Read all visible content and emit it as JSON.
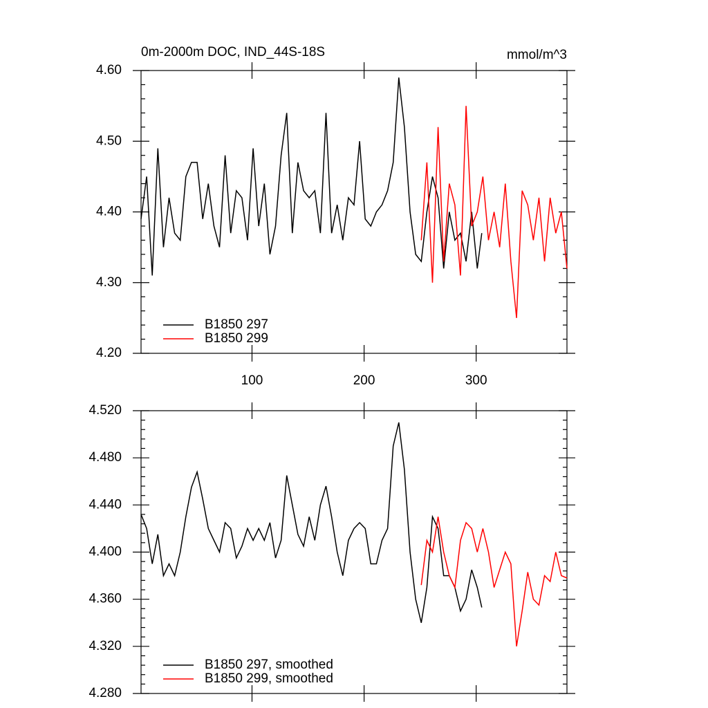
{
  "chart_data": [
    {
      "type": "line",
      "title": "0m-2000m DOC, IND_44S-18S",
      "units": "mmol/m^3",
      "xlim": [
        1,
        381
      ],
      "xticks": [
        100,
        200,
        300
      ],
      "xtick_labels": true,
      "ylim": [
        4.2,
        4.6
      ],
      "yticks": [
        {
          "value": 4.2,
          "label": "4.20"
        },
        {
          "value": 4.3,
          "label": "4.30"
        },
        {
          "value": 4.4,
          "label": "4.40"
        },
        {
          "value": 4.5,
          "label": "4.50"
        },
        {
          "value": 4.6,
          "label": "4.60"
        }
      ],
      "legend": "lower left",
      "series": [
        {
          "name": "B1850 297",
          "color": "#000000",
          "x": [
            1,
            6,
            11,
            16,
            21,
            26,
            31,
            36,
            41,
            46,
            51,
            56,
            61,
            66,
            71,
            76,
            81,
            86,
            91,
            96,
            101,
            106,
            111,
            116,
            121,
            126,
            131,
            136,
            141,
            146,
            151,
            156,
            161,
            166,
            171,
            176,
            181,
            186,
            191,
            196,
            201,
            206,
            211,
            216,
            221,
            226,
            231,
            236,
            241,
            246,
            251,
            256,
            261,
            266,
            271,
            276,
            281,
            286,
            291,
            296,
            301,
            305
          ],
          "values": [
            4.39,
            4.45,
            4.31,
            4.49,
            4.35,
            4.42,
            4.37,
            4.36,
            4.45,
            4.47,
            4.47,
            4.39,
            4.44,
            4.38,
            4.35,
            4.48,
            4.37,
            4.43,
            4.42,
            4.36,
            4.49,
            4.38,
            4.44,
            4.34,
            4.38,
            4.48,
            4.54,
            4.37,
            4.47,
            4.43,
            4.42,
            4.43,
            4.37,
            4.54,
            4.37,
            4.41,
            4.36,
            4.42,
            4.41,
            4.5,
            4.39,
            4.38,
            4.4,
            4.41,
            4.43,
            4.47,
            4.59,
            4.52,
            4.4,
            4.34,
            4.33,
            4.4,
            4.45,
            4.42,
            4.32,
            4.4,
            4.36,
            4.37,
            4.33,
            4.4,
            4.32,
            4.37
          ]
        },
        {
          "name": "B1850 299",
          "color": "#ff0000",
          "x": [
            251,
            256,
            261,
            266,
            271,
            276,
            281,
            286,
            291,
            296,
            301,
            306,
            311,
            316,
            321,
            326,
            331,
            336,
            341,
            346,
            351,
            356,
            361,
            366,
            371,
            376,
            381
          ],
          "values": [
            4.36,
            4.47,
            4.3,
            4.52,
            4.33,
            4.44,
            4.41,
            4.31,
            4.55,
            4.38,
            4.4,
            4.45,
            4.36,
            4.4,
            4.35,
            4.44,
            4.33,
            4.25,
            4.43,
            4.41,
            4.36,
            4.42,
            4.33,
            4.42,
            4.37,
            4.4,
            4.32
          ]
        }
      ]
    },
    {
      "type": "line",
      "xlim": [
        1,
        381
      ],
      "xticks": [
        100,
        200,
        300
      ],
      "xtick_labels": false,
      "ylim": [
        4.28,
        4.52
      ],
      "yticks": [
        {
          "value": 4.28,
          "label": "4.280"
        },
        {
          "value": 4.32,
          "label": "4.320"
        },
        {
          "value": 4.36,
          "label": "4.360"
        },
        {
          "value": 4.4,
          "label": "4.400"
        },
        {
          "value": 4.44,
          "label": "4.440"
        },
        {
          "value": 4.48,
          "label": "4.480"
        },
        {
          "value": 4.52,
          "label": "4.520"
        }
      ],
      "legend": "lower left",
      "series": [
        {
          "name": "B1850 297, smoothed",
          "color": "#000000",
          "x": [
            1,
            6,
            11,
            16,
            21,
            26,
            31,
            36,
            41,
            46,
            51,
            56,
            61,
            66,
            71,
            76,
            81,
            86,
            91,
            96,
            101,
            106,
            111,
            116,
            121,
            126,
            131,
            136,
            141,
            146,
            151,
            156,
            161,
            166,
            171,
            176,
            181,
            186,
            191,
            196,
            201,
            206,
            211,
            216,
            221,
            226,
            231,
            236,
            241,
            246,
            251,
            256,
            261,
            266,
            271,
            276,
            281,
            286,
            291,
            296,
            301,
            305
          ],
          "values": [
            4.432,
            4.42,
            4.39,
            4.415,
            4.38,
            4.39,
            4.38,
            4.4,
            4.43,
            4.455,
            4.468,
            4.445,
            4.42,
            4.41,
            4.4,
            4.425,
            4.42,
            4.395,
            4.405,
            4.42,
            4.41,
            4.42,
            4.41,
            4.425,
            4.395,
            4.41,
            4.465,
            4.44,
            4.415,
            4.405,
            4.43,
            4.41,
            4.44,
            4.456,
            4.43,
            4.4,
            4.38,
            4.41,
            4.42,
            4.425,
            4.42,
            4.39,
            4.39,
            4.41,
            4.42,
            4.49,
            4.51,
            4.47,
            4.4,
            4.36,
            4.34,
            4.37,
            4.43,
            4.42,
            4.38,
            4.38,
            4.37,
            4.35,
            4.36,
            4.385,
            4.37,
            4.353
          ]
        },
        {
          "name": "B1850 299, smoothed",
          "color": "#ff0000",
          "x": [
            251,
            256,
            261,
            266,
            271,
            276,
            281,
            286,
            291,
            296,
            301,
            306,
            311,
            316,
            321,
            326,
            331,
            336,
            341,
            346,
            351,
            356,
            361,
            366,
            371,
            376,
            381
          ],
          "values": [
            4.372,
            4.41,
            4.4,
            4.43,
            4.4,
            4.38,
            4.37,
            4.41,
            4.425,
            4.42,
            4.4,
            4.42,
            4.4,
            4.37,
            4.385,
            4.4,
            4.39,
            4.32,
            4.35,
            4.383,
            4.36,
            4.355,
            4.38,
            4.375,
            4.4,
            4.38,
            4.378
          ]
        }
      ]
    }
  ]
}
